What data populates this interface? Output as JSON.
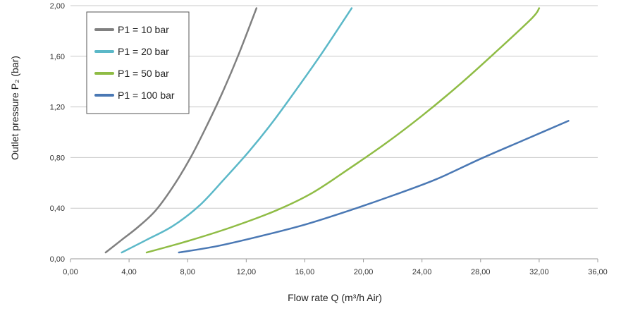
{
  "chart_data": {
    "type": "line",
    "xlabel": "Flow rate Q (m³/h Air)",
    "ylabel": "Outlet pressure P₂ (bar)",
    "xlim": [
      0,
      36
    ],
    "ylim": [
      0,
      2.0
    ],
    "x_ticks": [
      "0,00",
      "4,00",
      "8,00",
      "12,00",
      "16,00",
      "20,00",
      "24,00",
      "28,00",
      "32,00",
      "36,00"
    ],
    "y_ticks": [
      "0,00",
      "0,40",
      "0,80",
      "1,20",
      "1,60",
      "2,00"
    ],
    "x_tick_values": [
      0,
      4,
      8,
      12,
      16,
      20,
      24,
      28,
      32,
      36
    ],
    "y_tick_values": [
      0,
      0.4,
      0.8,
      1.2,
      1.6,
      2.0
    ],
    "grid": "horizontal",
    "legend_position": "top-left",
    "series": [
      {
        "name": "P1 = 10 bar",
        "color": "#808080",
        "points": [
          [
            2.4,
            0.05
          ],
          [
            3.5,
            0.15
          ],
          [
            4.6,
            0.25
          ],
          [
            5.8,
            0.38
          ],
          [
            7.0,
            0.57
          ],
          [
            8.2,
            0.8
          ],
          [
            9.3,
            1.05
          ],
          [
            10.4,
            1.32
          ],
          [
            11.5,
            1.62
          ],
          [
            12.7,
            1.98
          ]
        ]
      },
      {
        "name": "P1 = 20 bar",
        "color": "#5bb8c8",
        "points": [
          [
            3.5,
            0.05
          ],
          [
            5.2,
            0.15
          ],
          [
            7.0,
            0.26
          ],
          [
            8.8,
            0.42
          ],
          [
            10.5,
            0.63
          ],
          [
            12.2,
            0.85
          ],
          [
            13.8,
            1.08
          ],
          [
            15.5,
            1.35
          ],
          [
            17.2,
            1.63
          ],
          [
            19.2,
            1.98
          ]
        ]
      },
      {
        "name": "P1 = 50 bar",
        "color": "#8fbc45",
        "points": [
          [
            5.2,
            0.05
          ],
          [
            8.0,
            0.14
          ],
          [
            11.0,
            0.25
          ],
          [
            14.0,
            0.38
          ],
          [
            16.5,
            0.52
          ],
          [
            19.0,
            0.71
          ],
          [
            21.5,
            0.91
          ],
          [
            24.0,
            1.13
          ],
          [
            26.5,
            1.37
          ],
          [
            29.0,
            1.63
          ],
          [
            31.5,
            1.9
          ],
          [
            32.0,
            1.98
          ]
        ]
      },
      {
        "name": "P1 = 100 bar",
        "color": "#4a78b4",
        "points": [
          [
            7.4,
            0.05
          ],
          [
            10.0,
            0.1
          ],
          [
            13.0,
            0.18
          ],
          [
            16.0,
            0.27
          ],
          [
            19.0,
            0.38
          ],
          [
            22.0,
            0.5
          ],
          [
            25.0,
            0.63
          ],
          [
            28.0,
            0.79
          ],
          [
            31.0,
            0.94
          ],
          [
            34.0,
            1.09
          ]
        ]
      }
    ]
  }
}
